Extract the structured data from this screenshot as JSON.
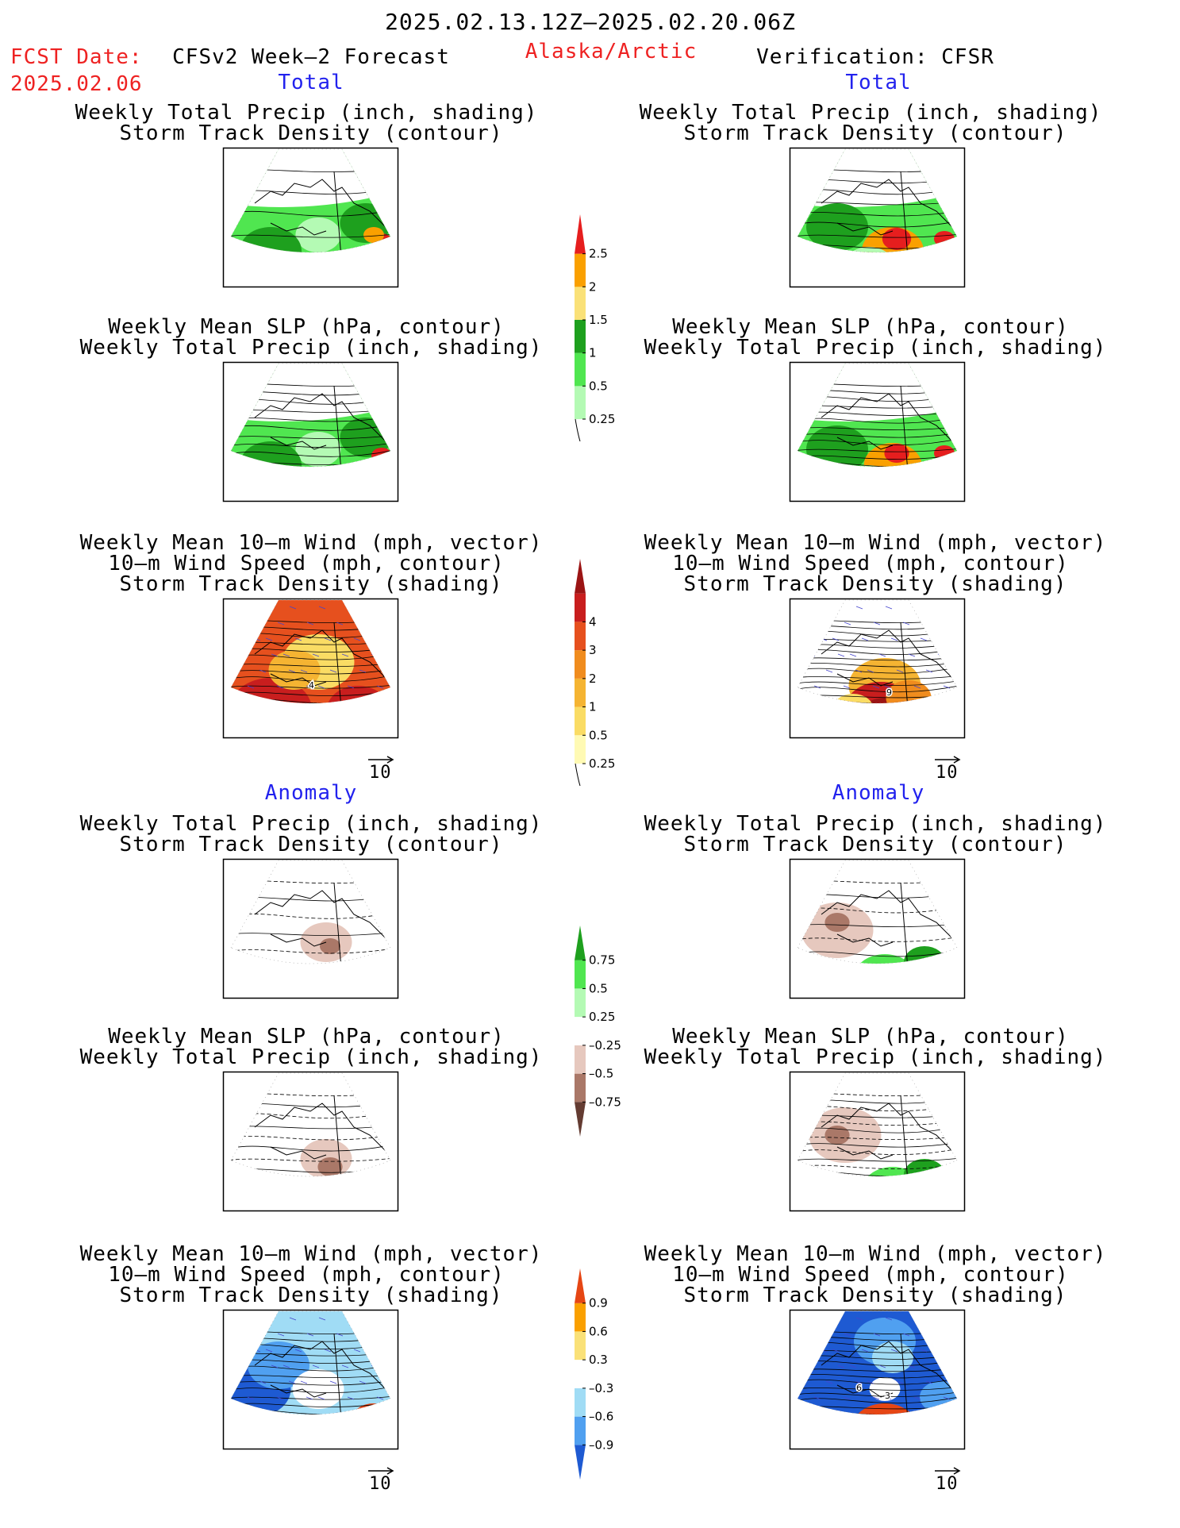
{
  "header": {
    "date_range": "2025.02.13.12Z–2025.02.20.06Z",
    "fcst_label": "FCST Date:",
    "fcst_date": "2025.02.06",
    "left_title": "CFSv2 Week–2 Forecast",
    "region": "Alaska/Arctic",
    "right_title": "Verification: CFSR"
  },
  "sections": {
    "total": "Total",
    "anomaly": "Anomaly"
  },
  "titles": {
    "precip": [
      "Weekly Total Precip (inch, shading)",
      "Storm Track Density (contour)"
    ],
    "slp": [
      "Weekly Mean SLP (hPa, contour)",
      "Weekly Total Precip (inch, shading)"
    ],
    "wind": [
      "Weekly Mean 10–m Wind (mph, vector)",
      "10–m Wind Speed (mph, contour)",
      "Storm Track Density (shading)"
    ]
  },
  "vector_ref": "10",
  "map_labels": {
    "fc_total_wind": "4",
    "vf_total_wind": "9",
    "vf_anom_wind_a": "6",
    "vf_anom_wind_b": "3"
  },
  "colorbars": {
    "precip_total": {
      "colors": [
        "#b4fab4",
        "#50e650",
        "#1ea01e",
        "#fae178",
        "#faa000",
        "#e61e1e"
      ],
      "labels": [
        "0.25",
        "0.5",
        "1",
        "1.5",
        "2",
        "2.5"
      ]
    },
    "storm_total": {
      "colors": [
        "#fffab4",
        "#fadc64",
        "#f5b432",
        "#f08c1e",
        "#e6501e",
        "#c81e1e",
        "#9b1414"
      ],
      "labels": [
        "0.25",
        "0.5",
        "1",
        "2",
        "3",
        "4"
      ]
    },
    "precip_anom": {
      "colors": [
        "#643c32",
        "#aa7868",
        "#e6c8be",
        "#ffffff",
        "#b4fab4",
        "#50e650",
        "#1ea01e"
      ],
      "labels": [
        "–0.75",
        "–0.5",
        "–0.25",
        "0.25",
        "0.5",
        "0.75"
      ]
    },
    "storm_anom": {
      "colors": [
        "#1e5ad2",
        "#50a0f0",
        "#a0dcf5",
        "#ffffff",
        "#fae178",
        "#faa000",
        "#e64614"
      ],
      "labels": [
        "–0.9",
        "–0.6",
        "–0.3",
        "0.3",
        "0.6",
        "0.9"
      ]
    }
  }
}
